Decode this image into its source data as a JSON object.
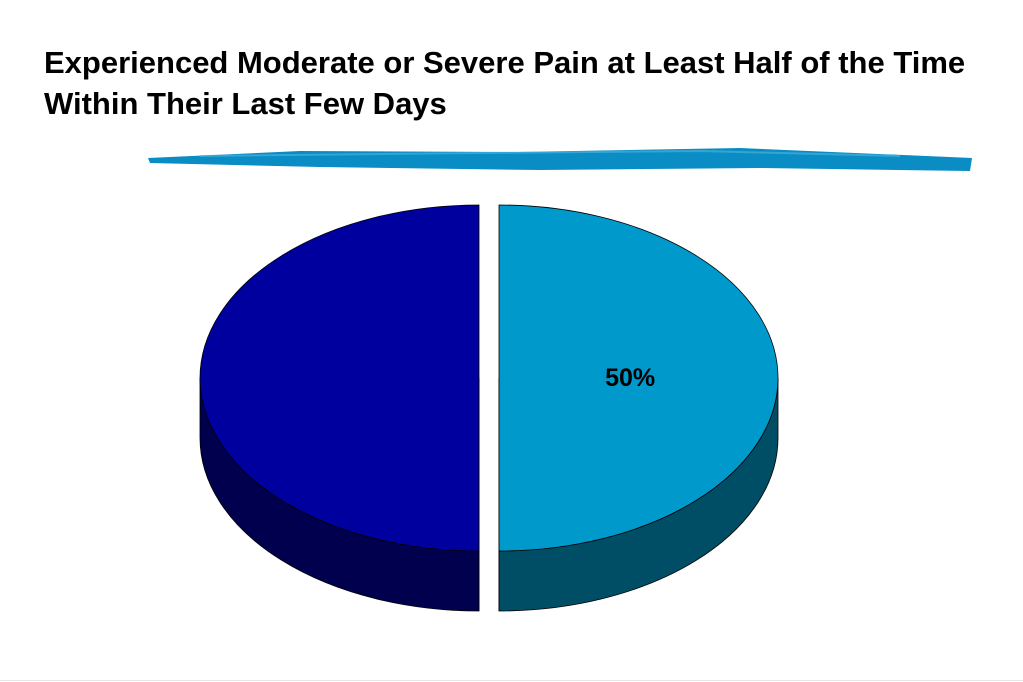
{
  "slide": {
    "title": "Experienced Moderate or Severe Pain at Least Half of the Time Within Their Last Few Days"
  },
  "colors": {
    "accent_stroke": "#0a8cc4",
    "slice_dark_top": "#00009e",
    "slice_dark_side": "#00004f",
    "slice_light_top": "#0099cc",
    "slice_light_side": "#004d66"
  },
  "chart_data": {
    "type": "pie",
    "style": "3d-exploded",
    "slices": [
      {
        "value": 50,
        "label": "50%",
        "color": "#0099cc",
        "side_color": "#004d66"
      },
      {
        "value": 50,
        "label": "",
        "color": "#00009e",
        "side_color": "#00004f"
      }
    ]
  }
}
